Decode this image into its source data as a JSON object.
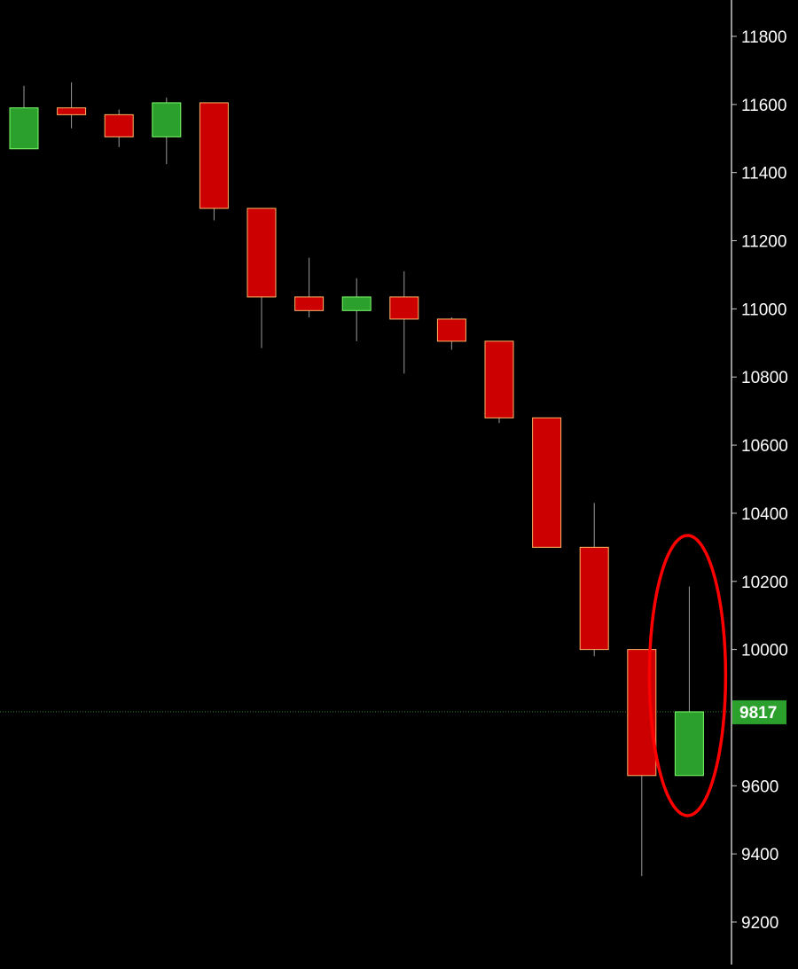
{
  "colors": {
    "background": "#000000",
    "up_fill": "#2ca02c",
    "up_border": "#7cfc6a",
    "down_fill": "#cc0000",
    "down_border": "#ffb366",
    "wick": "#9a9a9a",
    "axis_line": "#c8c8c8",
    "axis_text": "#ffffff",
    "price_line": "#2e7d32",
    "price_label_bg": "#2ca02c",
    "highlight": "#ff0000"
  },
  "chart_data": {
    "type": "candlestick",
    "ylim": [
      9120,
      11900
    ],
    "y_ticks": [
      11800,
      11600,
      11400,
      11200,
      11000,
      10800,
      10600,
      10400,
      10200,
      10000,
      9600,
      9400,
      9200
    ],
    "current_price": 9817,
    "current_price_label": "9817",
    "candles": [
      {
        "open": 11470,
        "high": 11655,
        "low": 11470,
        "close": 11590
      },
      {
        "open": 11590,
        "high": 11665,
        "low": 11530,
        "close": 11570
      },
      {
        "open": 11570,
        "high": 11585,
        "low": 11475,
        "close": 11505
      },
      {
        "open": 11505,
        "high": 11620,
        "low": 11425,
        "close": 11605
      },
      {
        "open": 11605,
        "high": 11605,
        "low": 11260,
        "close": 11295
      },
      {
        "open": 11295,
        "high": 11295,
        "low": 10885,
        "close": 11035
      },
      {
        "open": 11035,
        "high": 11150,
        "low": 10975,
        "close": 10995
      },
      {
        "open": 10995,
        "high": 11090,
        "low": 10905,
        "close": 11035
      },
      {
        "open": 11035,
        "high": 11110,
        "low": 10810,
        "close": 10970
      },
      {
        "open": 10970,
        "high": 10975,
        "low": 10880,
        "close": 10905
      },
      {
        "open": 10905,
        "high": 10905,
        "low": 10665,
        "close": 10680
      },
      {
        "open": 10680,
        "high": 10680,
        "low": 10300,
        "close": 10300
      },
      {
        "open": 10300,
        "high": 10430,
        "low": 9980,
        "close": 10000
      },
      {
        "open": 10000,
        "high": 10000,
        "low": 9335,
        "close": 9630
      },
      {
        "open": 9630,
        "high": 10185,
        "low": 9630,
        "close": 9817
      }
    ],
    "highlight_candle_index": 14
  }
}
